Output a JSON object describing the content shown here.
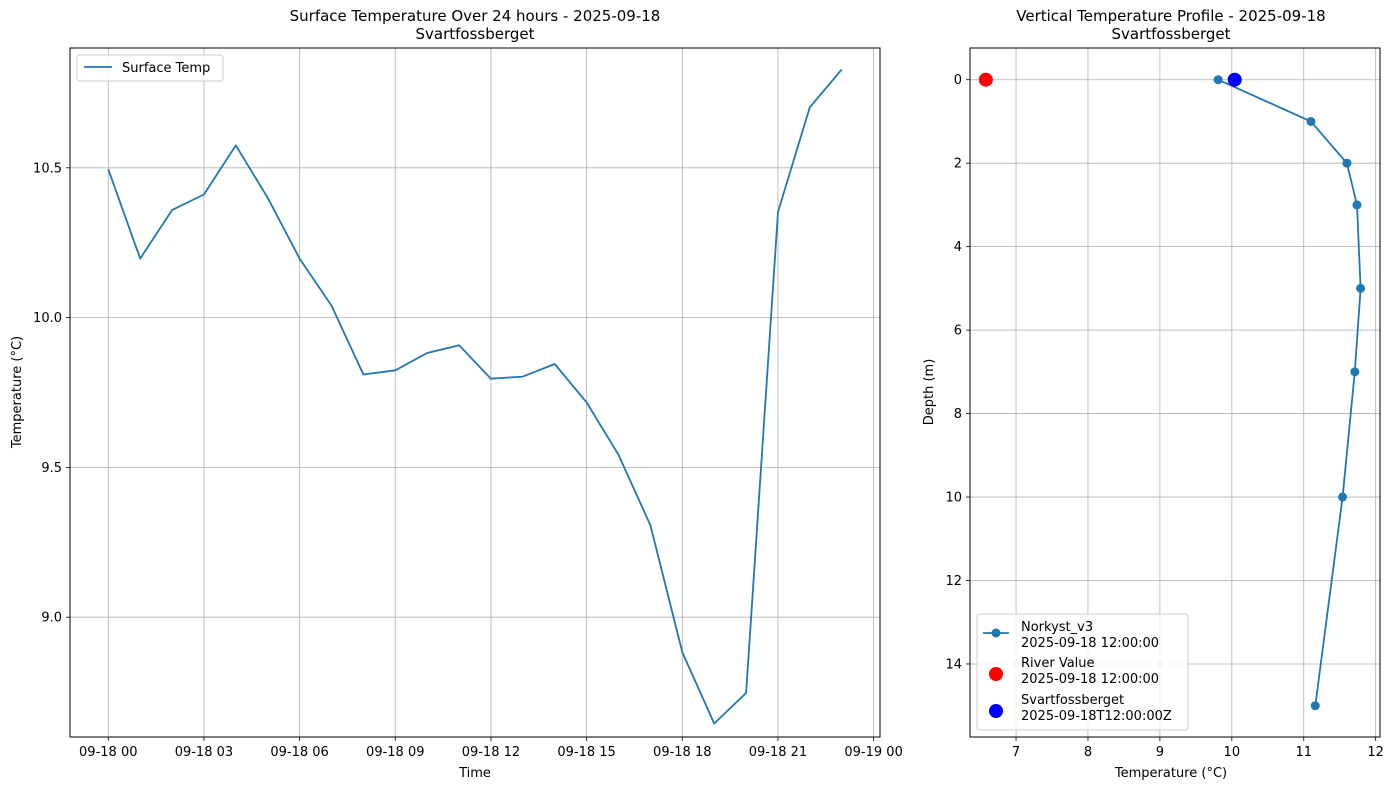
{
  "chart_data": [
    {
      "type": "line",
      "title": "Surface Temperature Over 24 hours - 2025-09-18",
      "subtitle": "Svartfossberget",
      "xlabel": "Time",
      "ylabel": "Temperature (°C)",
      "grid": true,
      "legend_position": "top-left",
      "x_tick_labels": [
        "09-18 00",
        "09-18 03",
        "09-18 06",
        "09-18 09",
        "09-18 12",
        "09-18 15",
        "09-18 18",
        "09-18 21",
        "09-19 00"
      ],
      "x_tick_hours": [
        0,
        3,
        6,
        9,
        12,
        15,
        18,
        21,
        24
      ],
      "y_ticks": [
        9.0,
        9.5,
        10.0,
        10.5
      ],
      "y_tick_labels": [
        "9.0",
        "9.5",
        "10.0",
        "10.5"
      ],
      "xlim_hours": [
        -1.2,
        24.2
      ],
      "ylim": [
        8.6,
        10.9
      ],
      "series": [
        {
          "name": "Surface Temp",
          "color": "#1f77b4",
          "x_hours": [
            0,
            1,
            2,
            3,
            4,
            5,
            6,
            7,
            8,
            9,
            10,
            11,
            12,
            13,
            14,
            15,
            16,
            17,
            18,
            19,
            20,
            21,
            22,
            23
          ],
          "values": [
            10.495,
            10.197,
            10.359,
            10.411,
            10.575,
            10.4,
            10.197,
            10.04,
            9.81,
            9.824,
            9.882,
            9.908,
            9.796,
            9.803,
            9.845,
            9.717,
            9.542,
            9.307,
            8.883,
            8.645,
            8.747,
            10.353,
            10.702,
            10.828
          ]
        }
      ]
    },
    {
      "type": "line",
      "title": "Vertical Temperature Profile - 2025-09-18",
      "subtitle": "Svartfossberget",
      "xlabel": "Temperature (°C)",
      "ylabel": "Depth (m)",
      "grid": true,
      "y_inverted": true,
      "legend_position": "bottom-left",
      "x_ticks": [
        7,
        8,
        9,
        10,
        11,
        12
      ],
      "x_tick_labels": [
        "7",
        "8",
        "9",
        "10",
        "11",
        "12"
      ],
      "y_ticks": [
        0,
        2,
        4,
        6,
        8,
        10,
        12,
        14
      ],
      "y_tick_labels": [
        "0",
        "2",
        "4",
        "6",
        "8",
        "10",
        "12",
        "14"
      ],
      "xlim": [
        6.36,
        12.06
      ],
      "ylim": [
        -0.76,
        15.75
      ],
      "series": [
        {
          "name": "Norkyst_v3",
          "name_line2": "2025-09-18 12:00:00",
          "color": "#1f77b4",
          "marker": "circle",
          "temperature": [
            9.81,
            11.1,
            11.6,
            11.74,
            11.79,
            11.71,
            11.54,
            11.16
          ],
          "depth": [
            0,
            1,
            2,
            3,
            5,
            7,
            10,
            15
          ]
        },
        {
          "name": "River Value",
          "name_line2": "2025-09-18 12:00:00",
          "color": "#ff0000",
          "marker": "big-circle",
          "temperature": [
            6.58
          ],
          "depth": [
            0
          ]
        },
        {
          "name": "Svartfossberget",
          "name_line2": "2025-09-18T12:00:00Z",
          "color": "#0000ff",
          "marker": "big-circle",
          "temperature": [
            10.04
          ],
          "depth": [
            0
          ]
        }
      ]
    }
  ]
}
